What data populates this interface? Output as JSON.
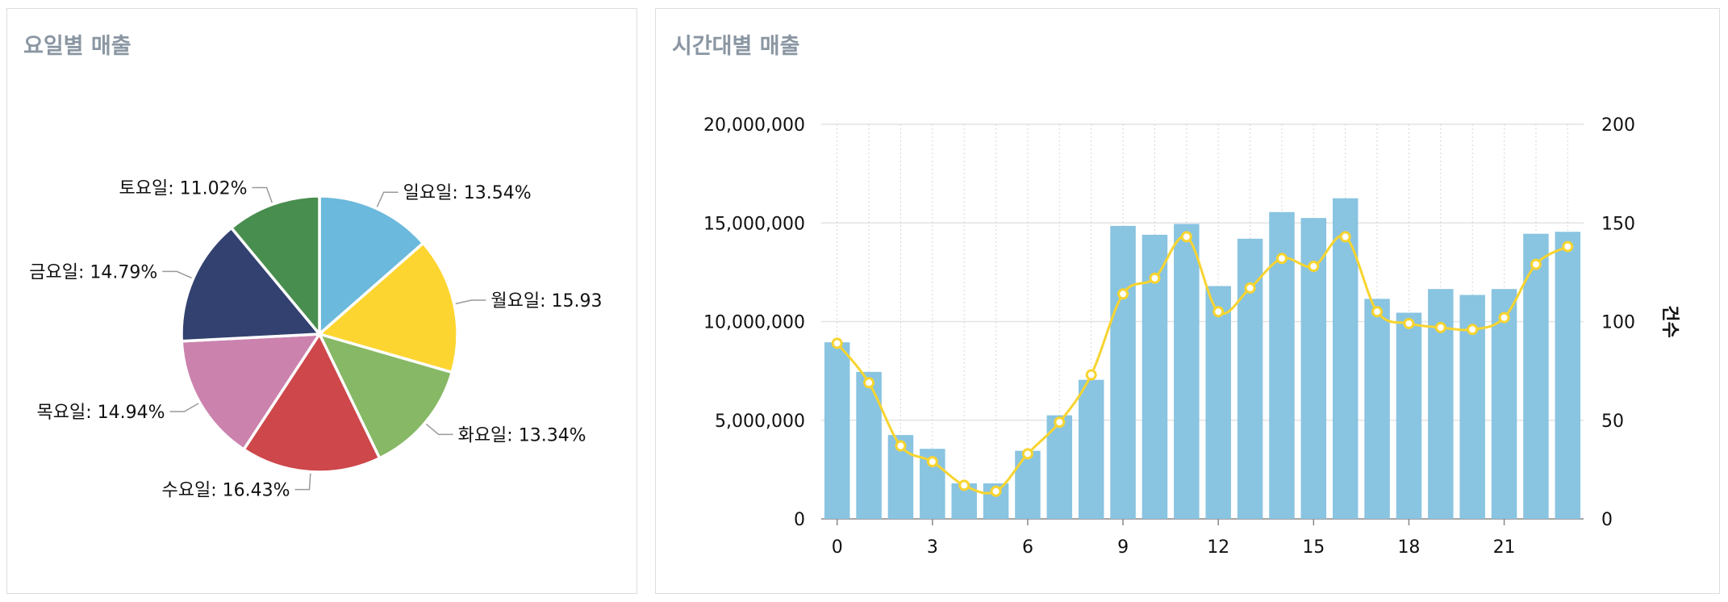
{
  "panels": {
    "left_title": "요일별 매출",
    "right_title": "시간대별 매출"
  },
  "chart_data": [
    {
      "type": "pie",
      "title": "요일별 매출",
      "slices": [
        {
          "label": "일요일: 13.54%",
          "value": 13.54,
          "color": "#6bb9dc"
        },
        {
          "label": "월요일: 15.93",
          "value": 15.93,
          "color": "#fdd530"
        },
        {
          "label": "화요일: 13.34%",
          "value": 13.34,
          "color": "#86b865"
        },
        {
          "label": "수요일: 16.43%",
          "value": 16.43,
          "color": "#cd474b"
        },
        {
          "label": "목요일: 14.94%",
          "value": 14.94,
          "color": "#cb83ae"
        },
        {
          "label": "금요일: 14.79%",
          "value": 14.79,
          "color": "#324170"
        },
        {
          "label": "토요일: 11.02%",
          "value": 11.02,
          "color": "#488e4e"
        }
      ]
    },
    {
      "type": "bar",
      "title": "시간대별 매출",
      "x": [
        0,
        1,
        2,
        3,
        4,
        5,
        6,
        7,
        8,
        9,
        10,
        11,
        12,
        13,
        14,
        15,
        16,
        17,
        18,
        19,
        20,
        21,
        22,
        23
      ],
      "x_ticks": [
        "0",
        "3",
        "6",
        "9",
        "12",
        "15",
        "18",
        "21"
      ],
      "y_ticks": [
        "0",
        "5,000,000",
        "10,000,000",
        "15,000,000",
        "20,000,000"
      ],
      "y2_ticks": [
        "0",
        "50",
        "100",
        "150",
        "200"
      ],
      "ylim": [
        0,
        20000000
      ],
      "y2lim": [
        0,
        200
      ],
      "y2label": "건수",
      "series": [
        {
          "type": "bar",
          "axis": "left",
          "color": "#89c4e1",
          "values": [
            8950000,
            7450000,
            4250000,
            3550000,
            1800000,
            1800000,
            3450000,
            5250000,
            7050000,
            14850000,
            14400000,
            14950000,
            11800000,
            14200000,
            15550000,
            15250000,
            16250000,
            11150000,
            10450000,
            11650000,
            11350000,
            11650000,
            14450000,
            14550000
          ]
        },
        {
          "type": "line",
          "axis": "right",
          "color": "#f7d430",
          "values": [
            89,
            69,
            37,
            29,
            17,
            14,
            33,
            49,
            73,
            114,
            122,
            143,
            105,
            117,
            132,
            128,
            143,
            105,
            99,
            97,
            96,
            102,
            129,
            138
          ]
        }
      ]
    }
  ]
}
